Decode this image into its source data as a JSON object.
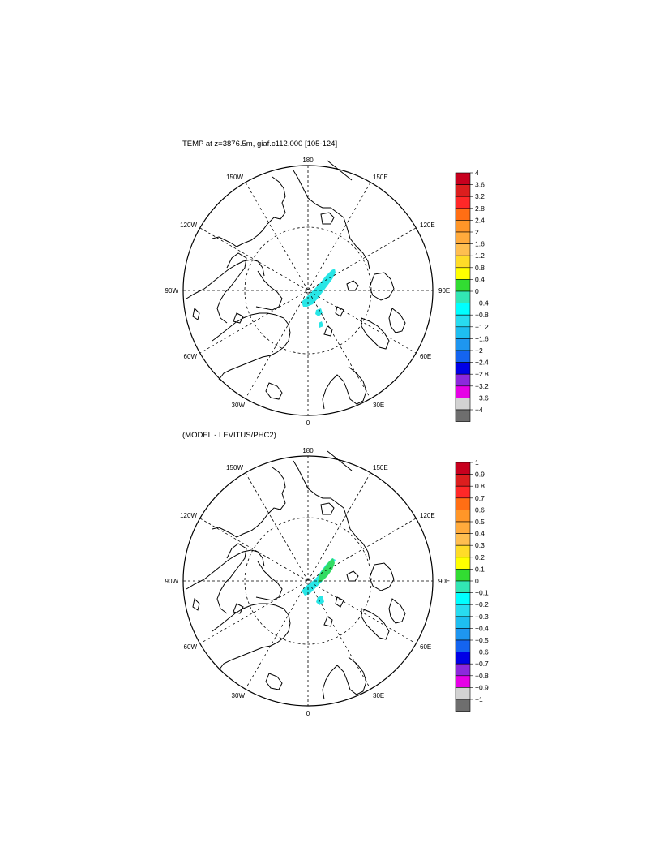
{
  "panels": [
    {
      "title": "TEMP at z=3876.5m, giaf.c112.000 [105-124]",
      "lon_labels": {
        "top": "180",
        "bottom": "0",
        "left": "90W",
        "right": "90E",
        "tl150": "150W",
        "tl120": "120W",
        "bl60": "60W",
        "bl30": "30W",
        "tr150": "150E",
        "tr120": "120E",
        "br60": "60E",
        "br30": "30E"
      },
      "colorbar": {
        "labels": [
          "4",
          "3.6",
          "3.2",
          "2.8",
          "2.4",
          "2",
          "1.6",
          "1.2",
          "0.8",
          "0.4",
          "0",
          "−0.4",
          "−0.8",
          "−1.2",
          "−1.6",
          "−2",
          "−2.4",
          "−2.8",
          "−3.2",
          "−3.6",
          "−4"
        ],
        "colors": [
          "#c8001e",
          "#dc1e1e",
          "#ff2828",
          "#ff6e14",
          "#ff9628",
          "#ffaa3c",
          "#ffbe50",
          "#ffdc28",
          "#ffff00",
          "#32dc32",
          "#32e6b4",
          "#00ffff",
          "#28dcf0",
          "#1ebef0",
          "#1e96f0",
          "#1464f0",
          "#0000e6",
          "#8c28dc",
          "#e600e6",
          "#d2d2d2",
          "#6e6e6e"
        ]
      }
    },
    {
      "title": "(MODEL - LEVITUS/PHC2)",
      "lon_labels": {
        "top": "180",
        "bottom": "0",
        "left": "90W",
        "right": "90E",
        "tl150": "150W",
        "tl120": "120W",
        "bl60": "60W",
        "bl30": "30W",
        "tr150": "150E",
        "tr120": "120E",
        "br60": "60E",
        "br30": "30E"
      },
      "colorbar": {
        "labels": [
          "1",
          "0.9",
          "0.8",
          "0.7",
          "0.6",
          "0.5",
          "0.4",
          "0.3",
          "0.2",
          "0.1",
          "0",
          "−0.1",
          "−0.2",
          "−0.3",
          "−0.4",
          "−0.5",
          "−0.6",
          "−0.7",
          "−0.8",
          "−0.9",
          "−1"
        ],
        "colors": [
          "#c8001e",
          "#dc1e1e",
          "#ff2828",
          "#ff6e14",
          "#ff9628",
          "#ffaa3c",
          "#ffbe50",
          "#ffdc28",
          "#ffff00",
          "#32dc32",
          "#32e6b4",
          "#00ffff",
          "#28dcf0",
          "#1ebef0",
          "#1e96f0",
          "#1464f0",
          "#0000e6",
          "#8c28dc",
          "#e600e6",
          "#d2d2d2",
          "#6e6e6e"
        ]
      }
    }
  ]
}
